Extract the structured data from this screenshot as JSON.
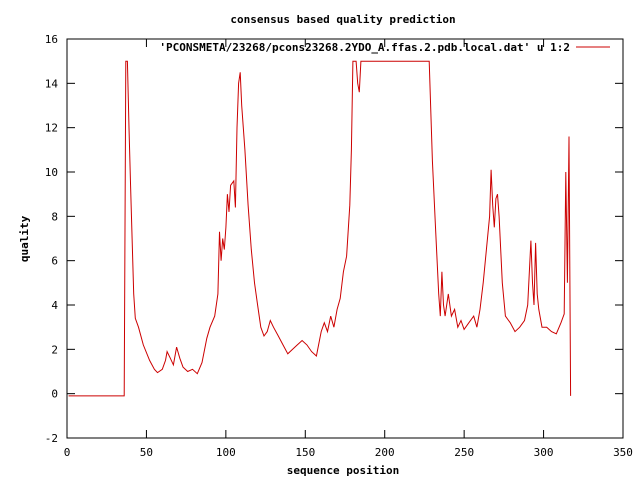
{
  "chart_data": {
    "type": "line",
    "title": "consensus based quality prediction",
    "xlabel": "sequence position",
    "ylabel": "quality",
    "xlim": [
      0,
      350
    ],
    "ylim": [
      -2,
      16
    ],
    "xticks": [
      0,
      50,
      100,
      150,
      200,
      250,
      300,
      350
    ],
    "yticks": [
      -2,
      0,
      2,
      4,
      6,
      8,
      10,
      12,
      14,
      16
    ],
    "legend_position": "top-right",
    "grid": false,
    "series": [
      {
        "name": "'PCONSMETA/23268/pcons23268.2YDO_A.ffas.2.pdb.local.dat' u 1:2",
        "color": "#cc0000",
        "points": [
          [
            1,
            -0.1
          ],
          [
            36,
            -0.1
          ],
          [
            37,
            15.0
          ],
          [
            38,
            15.0
          ],
          [
            39,
            12.0
          ],
          [
            40,
            9.5
          ],
          [
            41,
            7.0
          ],
          [
            42,
            4.5
          ],
          [
            43,
            3.4
          ],
          [
            45,
            3.0
          ],
          [
            48,
            2.2
          ],
          [
            52,
            1.5
          ],
          [
            55,
            1.1
          ],
          [
            57,
            0.95
          ],
          [
            60,
            1.1
          ],
          [
            62,
            1.5
          ],
          [
            63,
            1.9
          ],
          [
            65,
            1.6
          ],
          [
            67,
            1.3
          ],
          [
            69,
            2.1
          ],
          [
            71,
            1.6
          ],
          [
            73,
            1.2
          ],
          [
            76,
            1.0
          ],
          [
            79,
            1.1
          ],
          [
            82,
            0.9
          ],
          [
            85,
            1.4
          ],
          [
            88,
            2.5
          ],
          [
            90,
            3.0
          ],
          [
            93,
            3.5
          ],
          [
            95,
            4.5
          ],
          [
            96,
            7.3
          ],
          [
            97,
            6.0
          ],
          [
            98,
            7.0
          ],
          [
            99,
            6.5
          ],
          [
            100,
            7.5
          ],
          [
            101,
            9.0
          ],
          [
            102,
            8.2
          ],
          [
            103,
            9.4
          ],
          [
            105,
            9.6
          ],
          [
            106,
            8.4
          ],
          [
            107,
            12.0
          ],
          [
            108,
            14.0
          ],
          [
            109,
            14.5
          ],
          [
            110,
            13.0
          ],
          [
            112,
            11.0
          ],
          [
            114,
            8.5
          ],
          [
            116,
            6.5
          ],
          [
            118,
            5.0
          ],
          [
            120,
            4.0
          ],
          [
            122,
            3.0
          ],
          [
            124,
            2.6
          ],
          [
            126,
            2.8
          ],
          [
            128,
            3.3
          ],
          [
            130,
            3.0
          ],
          [
            133,
            2.6
          ],
          [
            136,
            2.2
          ],
          [
            139,
            1.8
          ],
          [
            142,
            2.0
          ],
          [
            145,
            2.2
          ],
          [
            148,
            2.4
          ],
          [
            151,
            2.2
          ],
          [
            154,
            1.9
          ],
          [
            157,
            1.7
          ],
          [
            160,
            2.8
          ],
          [
            162,
            3.2
          ],
          [
            164,
            2.8
          ],
          [
            166,
            3.5
          ],
          [
            168,
            3.0
          ],
          [
            170,
            3.8
          ],
          [
            172,
            4.3
          ],
          [
            174,
            5.5
          ],
          [
            176,
            6.2
          ],
          [
            178,
            8.5
          ],
          [
            179,
            11.0
          ],
          [
            180,
            15.0
          ],
          [
            182,
            15.0
          ],
          [
            183,
            14.0
          ],
          [
            184,
            13.6
          ],
          [
            185,
            15.0
          ],
          [
            228,
            15.0
          ],
          [
            230,
            10.5
          ],
          [
            232,
            7.5
          ],
          [
            234,
            4.5
          ],
          [
            235,
            3.5
          ],
          [
            236,
            5.5
          ],
          [
            237,
            4.0
          ],
          [
            238,
            3.5
          ],
          [
            240,
            4.5
          ],
          [
            242,
            3.5
          ],
          [
            244,
            3.8
          ],
          [
            246,
            3.0
          ],
          [
            248,
            3.3
          ],
          [
            250,
            2.9
          ],
          [
            253,
            3.2
          ],
          [
            256,
            3.5
          ],
          [
            258,
            3.0
          ],
          [
            260,
            3.8
          ],
          [
            262,
            5.0
          ],
          [
            264,
            6.5
          ],
          [
            266,
            8.0
          ],
          [
            267,
            10.1
          ],
          [
            268,
            8.5
          ],
          [
            269,
            7.5
          ],
          [
            270,
            8.8
          ],
          [
            271,
            9.0
          ],
          [
            272,
            8.0
          ],
          [
            274,
            5.0
          ],
          [
            276,
            3.5
          ],
          [
            279,
            3.2
          ],
          [
            282,
            2.8
          ],
          [
            285,
            3.0
          ],
          [
            288,
            3.3
          ],
          [
            290,
            4.0
          ],
          [
            292,
            6.9
          ],
          [
            293,
            5.0
          ],
          [
            294,
            4.0
          ],
          [
            295,
            6.8
          ],
          [
            296,
            4.5
          ],
          [
            297,
            3.8
          ],
          [
            299,
            3.0
          ],
          [
            302,
            3.0
          ],
          [
            305,
            2.8
          ],
          [
            308,
            2.7
          ],
          [
            311,
            3.2
          ],
          [
            313,
            3.6
          ],
          [
            314,
            10.0
          ],
          [
            315,
            5.0
          ],
          [
            316,
            11.6
          ],
          [
            317,
            -0.1
          ]
        ]
      }
    ]
  }
}
